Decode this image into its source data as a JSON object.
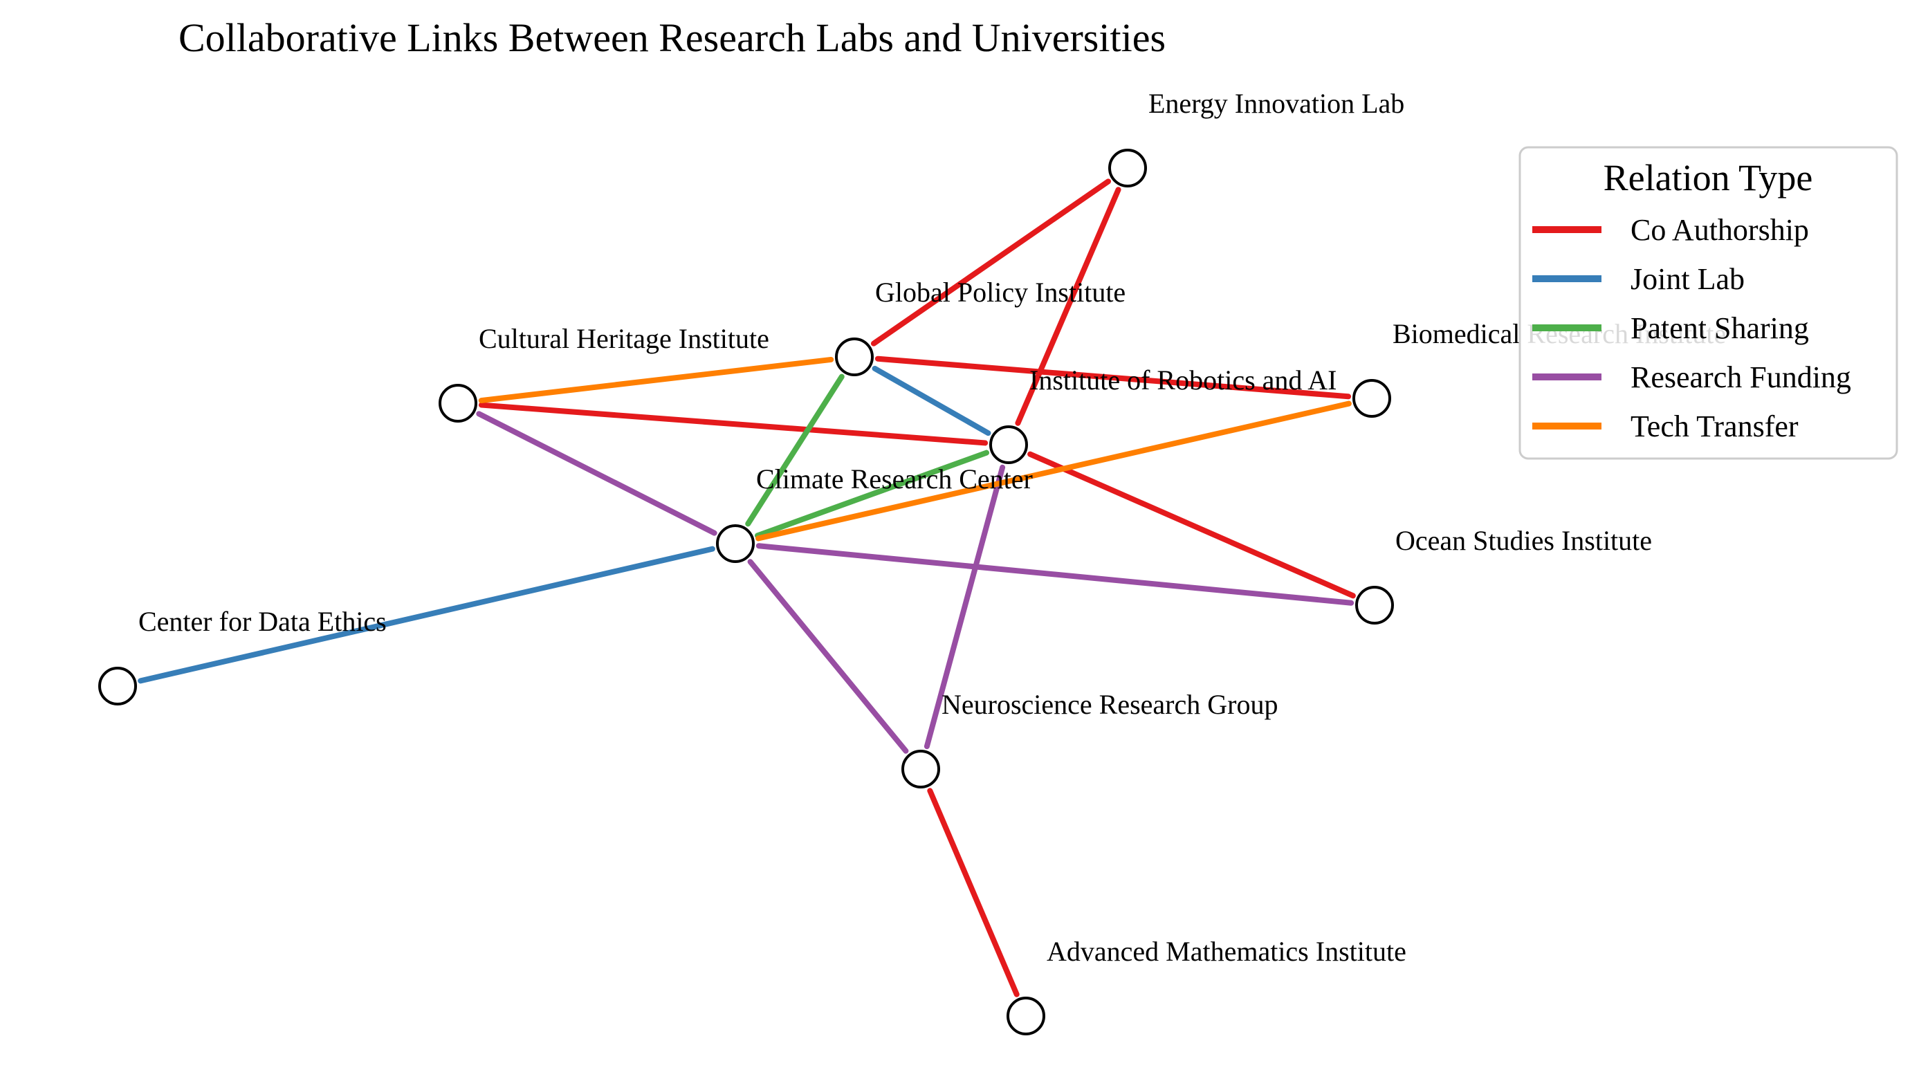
{
  "title": "Collaborative Links Between Research Labs and Universities",
  "legend": {
    "title": "Relation Type",
    "items": [
      {
        "key": "co_authorship",
        "label": "Co Authorship",
        "color": "#e41a1c"
      },
      {
        "key": "joint_lab",
        "label": "Joint Lab",
        "color": "#377eb8"
      },
      {
        "key": "patent_sharing",
        "label": "Patent Sharing",
        "color": "#4daf4a"
      },
      {
        "key": "research_funding",
        "label": "Research Funding",
        "color": "#984ea3"
      },
      {
        "key": "tech_transfer",
        "label": "Tech Transfer",
        "color": "#ff7f00"
      }
    ]
  },
  "nodes": [
    {
      "id": "energy",
      "label": "Energy Innovation Lab"
    },
    {
      "id": "global",
      "label": "Global Policy Institute"
    },
    {
      "id": "biomed",
      "label": "Biomedical Research Institute"
    },
    {
      "id": "cultural",
      "label": "Cultural Heritage Institute"
    },
    {
      "id": "robotics",
      "label": "Institute of Robotics and AI"
    },
    {
      "id": "climate",
      "label": "Climate Research Center"
    },
    {
      "id": "ocean",
      "label": "Ocean Studies Institute"
    },
    {
      "id": "ethics",
      "label": "Center for Data Ethics"
    },
    {
      "id": "neuro",
      "label": "Neuroscience Research Group"
    },
    {
      "id": "math",
      "label": "Advanced Mathematics Institute"
    }
  ],
  "edges": [
    {
      "source": "global",
      "target": "energy",
      "type": "co_authorship"
    },
    {
      "source": "robotics",
      "target": "energy",
      "type": "co_authorship"
    },
    {
      "source": "global",
      "target": "biomed",
      "type": "co_authorship"
    },
    {
      "source": "cultural",
      "target": "robotics",
      "type": "co_authorship"
    },
    {
      "source": "robotics",
      "target": "ocean",
      "type": "co_authorship"
    },
    {
      "source": "neuro",
      "target": "math",
      "type": "co_authorship"
    },
    {
      "source": "global",
      "target": "robotics",
      "type": "joint_lab"
    },
    {
      "source": "climate",
      "target": "ethics",
      "type": "joint_lab"
    },
    {
      "source": "climate",
      "target": "global",
      "type": "patent_sharing"
    },
    {
      "source": "climate",
      "target": "robotics",
      "type": "patent_sharing"
    },
    {
      "source": "cultural",
      "target": "climate",
      "type": "research_funding"
    },
    {
      "source": "climate",
      "target": "ocean",
      "type": "research_funding"
    },
    {
      "source": "climate",
      "target": "neuro",
      "type": "research_funding"
    },
    {
      "source": "robotics",
      "target": "neuro",
      "type": "research_funding"
    },
    {
      "source": "cultural",
      "target": "global",
      "type": "tech_transfer"
    },
    {
      "source": "climate",
      "target": "biomed",
      "type": "tech_transfer"
    }
  ]
}
